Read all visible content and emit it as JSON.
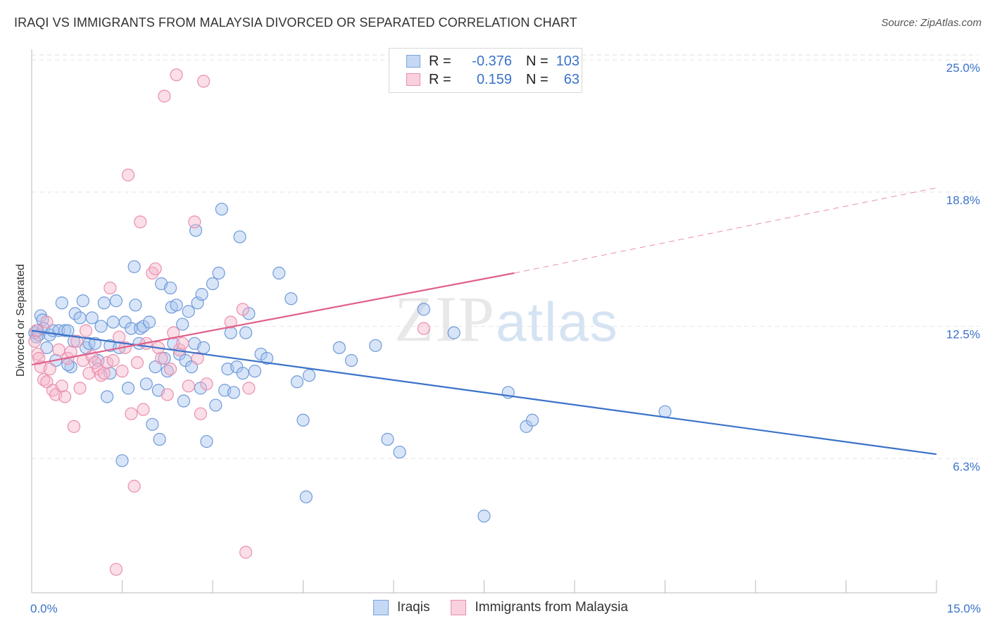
{
  "title": "IRAQI VS IMMIGRANTS FROM MALAYSIA DIVORCED OR SEPARATED CORRELATION CHART",
  "source": "Source: ZipAtlas.com",
  "watermark": {
    "zip": "ZIP",
    "atlas": "atlas"
  },
  "legend": {
    "rows": [
      {
        "r_label": "R =",
        "r_value": "-0.376",
        "n_label": "N =",
        "n_value": "103",
        "color": "#a9c6ef"
      },
      {
        "r_label": "R =",
        "r_value": "0.159",
        "n_label": "N =",
        "n_value": "63",
        "color": "#f5b6cb"
      }
    ]
  },
  "bottom_legend": {
    "series1": "Iraqis",
    "series2": "Immigrants from Malaysia"
  },
  "chart_data": {
    "type": "scatter",
    "title": "IRAQI VS IMMIGRANTS FROM MALAYSIA DIVORCED OR SEPARATED CORRELATION CHART",
    "xlabel": "",
    "ylabel": "Divorced or Separated",
    "xlim": [
      0,
      15
    ],
    "ylim": [
      0,
      25.5
    ],
    "x_tick_labels": [
      "0.0%",
      "15.0%"
    ],
    "y_ticks": [
      6.3,
      12.5,
      18.8,
      25.0
    ],
    "y_tick_labels": [
      "6.3%",
      "12.5%",
      "18.8%",
      "25.0%"
    ],
    "grid": "horizontal dashed",
    "colors": {
      "iraqis": "#3a72c9",
      "malaysia": "#e0608a",
      "iraqis_fill": "#a9c6ef",
      "malaysia_fill": "#f5b6cb"
    },
    "series": [
      {
        "name": "Iraqis",
        "trend": {
          "x": [
            0,
            15
          ],
          "y": [
            12.3,
            6.5
          ]
        },
        "points": [
          [
            0.05,
            12.2
          ],
          [
            0.08,
            12.0
          ],
          [
            0.1,
            12.3
          ],
          [
            0.12,
            12.1
          ],
          [
            0.15,
            13.0
          ],
          [
            0.18,
            12.8
          ],
          [
            0.2,
            12.4
          ],
          [
            0.25,
            11.5
          ],
          [
            0.3,
            12.1
          ],
          [
            0.35,
            12.3
          ],
          [
            0.4,
            10.9
          ],
          [
            0.45,
            12.3
          ],
          [
            0.5,
            13.6
          ],
          [
            0.55,
            12.3
          ],
          [
            0.6,
            12.3
          ],
          [
            0.65,
            10.6
          ],
          [
            0.7,
            11.8
          ],
          [
            0.72,
            13.1
          ],
          [
            0.8,
            12.9
          ],
          [
            0.85,
            13.7
          ],
          [
            0.9,
            11.5
          ],
          [
            0.95,
            11.7
          ],
          [
            1.0,
            12.9
          ],
          [
            1.05,
            11.7
          ],
          [
            1.1,
            10.9
          ],
          [
            1.15,
            12.5
          ],
          [
            1.2,
            13.6
          ],
          [
            1.25,
            9.2
          ],
          [
            1.3,
            11.6
          ],
          [
            1.35,
            12.7
          ],
          [
            1.4,
            13.7
          ],
          [
            1.45,
            11.5
          ],
          [
            1.5,
            6.2
          ],
          [
            1.55,
            12.7
          ],
          [
            1.6,
            9.6
          ],
          [
            1.65,
            12.4
          ],
          [
            1.7,
            15.3
          ],
          [
            1.72,
            13.5
          ],
          [
            1.78,
            11.7
          ],
          [
            1.8,
            12.4
          ],
          [
            1.85,
            12.5
          ],
          [
            1.9,
            9.8
          ],
          [
            1.95,
            12.7
          ],
          [
            2.0,
            7.9
          ],
          [
            2.05,
            10.6
          ],
          [
            2.1,
            9.5
          ],
          [
            2.12,
            7.2
          ],
          [
            2.15,
            14.5
          ],
          [
            2.2,
            11.0
          ],
          [
            2.25,
            10.4
          ],
          [
            2.3,
            14.3
          ],
          [
            2.32,
            13.4
          ],
          [
            2.35,
            11.7
          ],
          [
            2.4,
            13.5
          ],
          [
            2.45,
            11.2
          ],
          [
            2.5,
            12.6
          ],
          [
            2.52,
            9.0
          ],
          [
            2.55,
            10.9
          ],
          [
            2.6,
            13.2
          ],
          [
            2.65,
            10.6
          ],
          [
            2.7,
            11.7
          ],
          [
            2.72,
            17.0
          ],
          [
            2.75,
            13.6
          ],
          [
            2.8,
            9.6
          ],
          [
            2.82,
            14.0
          ],
          [
            2.85,
            11.5
          ],
          [
            2.9,
            7.1
          ],
          [
            3.0,
            14.5
          ],
          [
            3.05,
            8.8
          ],
          [
            3.1,
            15.0
          ],
          [
            3.15,
            18.0
          ],
          [
            3.2,
            9.5
          ],
          [
            3.25,
            10.5
          ],
          [
            3.3,
            12.2
          ],
          [
            3.35,
            9.4
          ],
          [
            3.4,
            10.6
          ],
          [
            3.45,
            16.7
          ],
          [
            3.5,
            10.3
          ],
          [
            3.55,
            12.2
          ],
          [
            3.6,
            13.1
          ],
          [
            3.7,
            10.4
          ],
          [
            3.8,
            11.2
          ],
          [
            3.9,
            11.0
          ],
          [
            4.1,
            15.0
          ],
          [
            4.3,
            13.8
          ],
          [
            4.4,
            9.9
          ],
          [
            4.5,
            8.1
          ],
          [
            4.55,
            4.5
          ],
          [
            4.6,
            10.2
          ],
          [
            5.1,
            11.5
          ],
          [
            5.3,
            10.9
          ],
          [
            5.7,
            11.6
          ],
          [
            5.9,
            7.2
          ],
          [
            6.1,
            6.6
          ],
          [
            6.5,
            13.3
          ],
          [
            7.0,
            12.2
          ],
          [
            7.5,
            3.6
          ],
          [
            7.9,
            9.4
          ],
          [
            8.2,
            7.8
          ],
          [
            8.3,
            8.1
          ],
          [
            10.5,
            8.5
          ],
          [
            0.6,
            10.7
          ],
          [
            1.3,
            10.3
          ]
        ]
      },
      {
        "name": "Immigrants from Malaysia",
        "trend": {
          "x": [
            0,
            8
          ],
          "y": [
            10.7,
            15.0
          ]
        },
        "trend_extended": {
          "x": [
            8,
            15
          ],
          "y": [
            15.0,
            19.0
          ]
        },
        "points": [
          [
            0.05,
            11.8
          ],
          [
            0.08,
            12.3
          ],
          [
            0.1,
            11.2
          ],
          [
            0.12,
            11.0
          ],
          [
            0.15,
            10.6
          ],
          [
            0.2,
            10.0
          ],
          [
            0.25,
            9.9
          ],
          [
            0.3,
            10.5
          ],
          [
            0.35,
            9.5
          ],
          [
            0.4,
            9.3
          ],
          [
            0.45,
            11.4
          ],
          [
            0.5,
            9.7
          ],
          [
            0.55,
            9.2
          ],
          [
            0.6,
            11.0
          ],
          [
            0.65,
            11.3
          ],
          [
            0.7,
            7.8
          ],
          [
            0.75,
            11.8
          ],
          [
            0.8,
            9.6
          ],
          [
            0.85,
            10.9
          ],
          [
            0.9,
            12.3
          ],
          [
            0.95,
            10.3
          ],
          [
            1.0,
            11.1
          ],
          [
            1.05,
            10.8
          ],
          [
            1.1,
            10.5
          ],
          [
            1.15,
            10.2
          ],
          [
            1.2,
            10.3
          ],
          [
            1.25,
            10.8
          ],
          [
            1.3,
            14.3
          ],
          [
            1.35,
            10.9
          ],
          [
            1.4,
            1.1
          ],
          [
            1.45,
            12.0
          ],
          [
            1.5,
            10.4
          ],
          [
            1.55,
            11.5
          ],
          [
            1.6,
            19.6
          ],
          [
            1.65,
            8.4
          ],
          [
            1.7,
            5.0
          ],
          [
            1.75,
            10.8
          ],
          [
            1.8,
            17.4
          ],
          [
            1.85,
            8.6
          ],
          [
            1.9,
            11.7
          ],
          [
            2.0,
            15.0
          ],
          [
            2.05,
            15.2
          ],
          [
            2.1,
            11.5
          ],
          [
            2.15,
            11.0
          ],
          [
            2.2,
            23.3
          ],
          [
            2.25,
            9.3
          ],
          [
            2.3,
            10.5
          ],
          [
            2.35,
            12.2
          ],
          [
            2.4,
            24.3
          ],
          [
            2.45,
            11.4
          ],
          [
            2.5,
            11.7
          ],
          [
            2.6,
            9.7
          ],
          [
            2.7,
            17.4
          ],
          [
            2.75,
            11.0
          ],
          [
            2.8,
            8.4
          ],
          [
            2.85,
            24.0
          ],
          [
            2.9,
            9.8
          ],
          [
            3.3,
            12.7
          ],
          [
            3.5,
            13.3
          ],
          [
            3.55,
            1.9
          ],
          [
            3.6,
            9.6
          ],
          [
            6.5,
            12.4
          ],
          [
            0.25,
            12.7
          ]
        ]
      }
    ]
  }
}
